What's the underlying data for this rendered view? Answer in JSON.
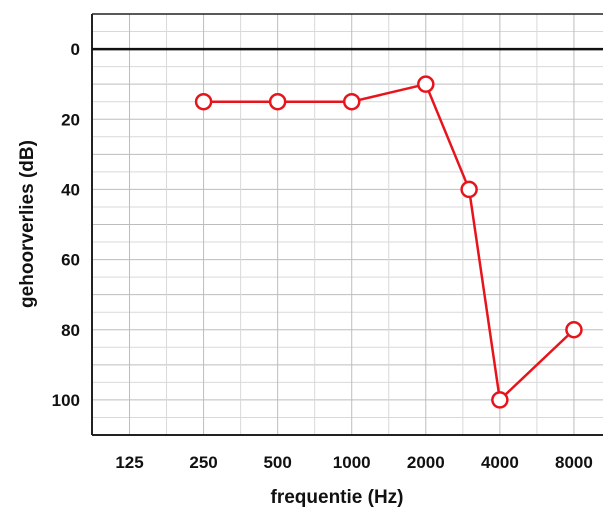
{
  "chart_data": {
    "type": "line",
    "xlabel": "frequentie (Hz)",
    "ylabel": "gehoorverlies (dB)",
    "x_tick_labels": [
      "125",
      "250",
      "500",
      "1000",
      "2000",
      "4000",
      "8000"
    ],
    "y_tick_labels": [
      "0",
      "20",
      "40",
      "60",
      "80",
      "100"
    ],
    "y_ticks": [
      0,
      20,
      40,
      60,
      80,
      100
    ],
    "ylim": [
      -10,
      110
    ],
    "y_inverted": true,
    "x_scale": "log2",
    "xlim": [
      88,
      10500
    ],
    "grid": true,
    "series": [
      {
        "color": "#e8141c",
        "marker": "open-circle",
        "points": [
          {
            "x": 250,
            "y": 15
          },
          {
            "x": 500,
            "y": 15
          },
          {
            "x": 1000,
            "y": 15
          },
          {
            "x": 2000,
            "y": 10
          },
          {
            "x": 3000,
            "y": 40
          },
          {
            "x": 4000,
            "y": 100
          },
          {
            "x": 8000,
            "y": 80
          }
        ]
      }
    ]
  }
}
